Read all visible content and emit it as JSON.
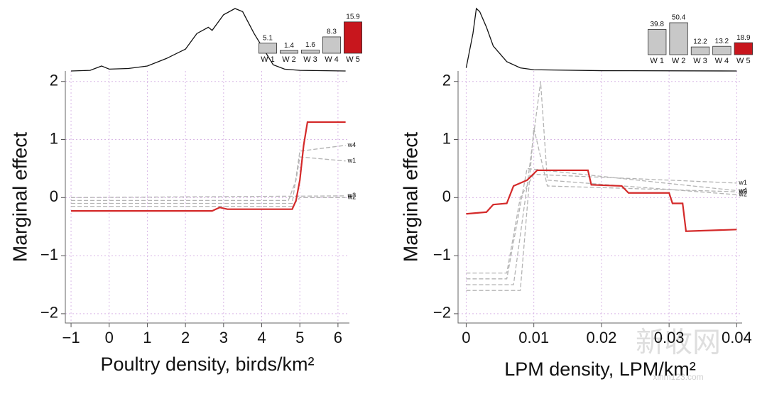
{
  "chart_data": [
    {
      "type": "line",
      "panel": 0,
      "ylabel": "Marginal effect",
      "xlabel": "Poultry density, birds/km²",
      "xlim": [
        -1.15,
        6.3
      ],
      "ylim": [
        -2.16,
        2.18
      ],
      "xticks": [
        {
          "value": -1,
          "label": "−1"
        },
        0,
        1,
        2,
        3,
        4,
        5,
        6
      ],
      "yticks": [
        {
          "value": -2,
          "label": "−2"
        },
        {
          "value": -1,
          "label": "−1"
        },
        0,
        1,
        2
      ],
      "grid": true,
      "series": [
        {
          "name": "w1",
          "color": "#b4b4b4",
          "dashed": true,
          "x": [
            -1,
            4.7,
            4.9,
            5,
            6.2
          ],
          "values": [
            -0.05,
            -0.05,
            0.3,
            0.7,
            0.63
          ]
        },
        {
          "name": "w4",
          "color": "#b4b4b4",
          "dashed": true,
          "x": [
            -1,
            4.8,
            5,
            6.2
          ],
          "values": [
            -0.1,
            -0.1,
            0.8,
            0.9
          ]
        },
        {
          "name": "w3",
          "color": "#b4b4b4",
          "dashed": true,
          "x": [
            -1,
            6.2
          ],
          "values": [
            0,
            0.03
          ]
        },
        {
          "name": "w2",
          "color": "#b4b4b4",
          "dashed": true,
          "x": [
            -1,
            4.8,
            5,
            6.2
          ],
          "values": [
            -0.15,
            -0.15,
            0,
            0
          ]
        },
        {
          "color": "#d42a2a",
          "dashed": false,
          "x": [
            -1,
            2.7,
            2.8,
            2.9,
            3.1,
            4.8,
            4.9,
            5,
            5.1,
            5.2,
            6.2
          ],
          "values": [
            -0.23,
            -0.23,
            -0.2,
            -0.17,
            -0.2,
            -0.2,
            -0.05,
            0.3,
            0.9,
            1.3,
            1.3
          ]
        }
      ]
    },
    {
      "type": "density",
      "panel": 0,
      "xlim": [
        -1.15,
        6.3
      ],
      "color": "#111",
      "x": [
        -1,
        -0.5,
        -0.2,
        0,
        0.5,
        1,
        1.5,
        2,
        2.3,
        2.6,
        2.7,
        3,
        3.3,
        3.5,
        3.8,
        4,
        4.3,
        4.6,
        5,
        6.2
      ],
      "values": [
        0,
        0.01,
        0.08,
        0.03,
        0.04,
        0.08,
        0.2,
        0.35,
        0.6,
        0.7,
        0.65,
        0.9,
        1.0,
        0.95,
        0.6,
        0.4,
        0.1,
        0.03,
        0.01,
        0
      ]
    },
    {
      "type": "bar",
      "panel": 0,
      "ylim": [
        0,
        18
      ],
      "categories": [
        "W 1",
        "W 2",
        "W 3",
        "W 4",
        "W 5"
      ],
      "values": [
        5.1,
        1.4,
        1.6,
        8.3,
        15.9
      ],
      "colors": [
        "#c8c8c8",
        "#c8c8c8",
        "#c8c8c8",
        "#c8c8c8",
        "#c8161d"
      ]
    },
    {
      "type": "line",
      "panel": 1,
      "ylabel": "Marginal effect",
      "xlabel": "LPM density, LPM/km²",
      "xlim": [
        -0.0012,
        0.0408
      ],
      "ylim": [
        -2.16,
        2.18
      ],
      "xticks": [
        0,
        0.01,
        0.02,
        0.03,
        0.04
      ],
      "yticks": [
        {
          "value": -2,
          "label": "−2"
        },
        {
          "value": -1,
          "label": "−1"
        },
        0,
        1,
        2
      ],
      "grid": true,
      "series": [
        {
          "name": "w1",
          "color": "#b4b4b4",
          "dashed": true,
          "x": [
            0,
            0.006,
            0.008,
            0.01,
            0.03,
            0.04
          ],
          "values": [
            -1.3,
            -1.3,
            0,
            0.4,
            0.3,
            0.25
          ]
        },
        {
          "name": "w4",
          "color": "#b4b4b4",
          "dashed": true,
          "x": [
            0,
            0.006,
            0.009,
            0.04
          ],
          "values": [
            -1.4,
            -1.4,
            0.5,
            0.12
          ]
        },
        {
          "name": "w3",
          "color": "#b4b4b4",
          "dashed": true,
          "x": [
            0,
            0.008,
            0.01,
            0.012,
            0.04
          ],
          "values": [
            -1.6,
            -1.6,
            1.2,
            0.2,
            0.1
          ]
        },
        {
          "name": "w2",
          "color": "#b4b4b4",
          "dashed": true,
          "x": [
            0,
            0.007,
            0.009,
            0.011,
            0.012,
            0.04
          ],
          "values": [
            -1.5,
            -1.5,
            0.2,
            2.0,
            0.3,
            0.05
          ]
        },
        {
          "color": "#d42a2a",
          "dashed": false,
          "x": [
            0,
            0.003,
            0.004,
            0.006,
            0.007,
            0.008,
            0.009,
            0.0105,
            0.018,
            0.0185,
            0.023,
            0.024,
            0.03,
            0.0305,
            0.032,
            0.0325,
            0.04
          ],
          "values": [
            -0.28,
            -0.25,
            -0.12,
            -0.1,
            0.2,
            0.25,
            0.3,
            0.47,
            0.47,
            0.22,
            0.2,
            0.08,
            0.08,
            -0.1,
            -0.1,
            -0.58,
            -0.55
          ]
        }
      ]
    },
    {
      "type": "density",
      "panel": 1,
      "xlim": [
        -0.0012,
        0.0408
      ],
      "color": "#111",
      "x": [
        0,
        0.001,
        0.0015,
        0.002,
        0.003,
        0.004,
        0.006,
        0.008,
        0.01,
        0.02,
        0.04
      ],
      "values": [
        0.05,
        0.6,
        1.0,
        0.95,
        0.7,
        0.4,
        0.15,
        0.05,
        0.02,
        0.005,
        0
      ]
    },
    {
      "type": "bar",
      "panel": 1,
      "ylim": [
        0,
        56
      ],
      "categories": [
        "W 1",
        "W 2",
        "W 3",
        "W 4",
        "W 5"
      ],
      "values": [
        39.8,
        50.4,
        12.2,
        13.2,
        18.9
      ],
      "colors": [
        "#c8c8c8",
        "#c8c8c8",
        "#c8c8c8",
        "#c8c8c8",
        "#c8161d"
      ]
    }
  ],
  "watermark": {
    "title": "新收网",
    "url": "xinm123.com"
  }
}
